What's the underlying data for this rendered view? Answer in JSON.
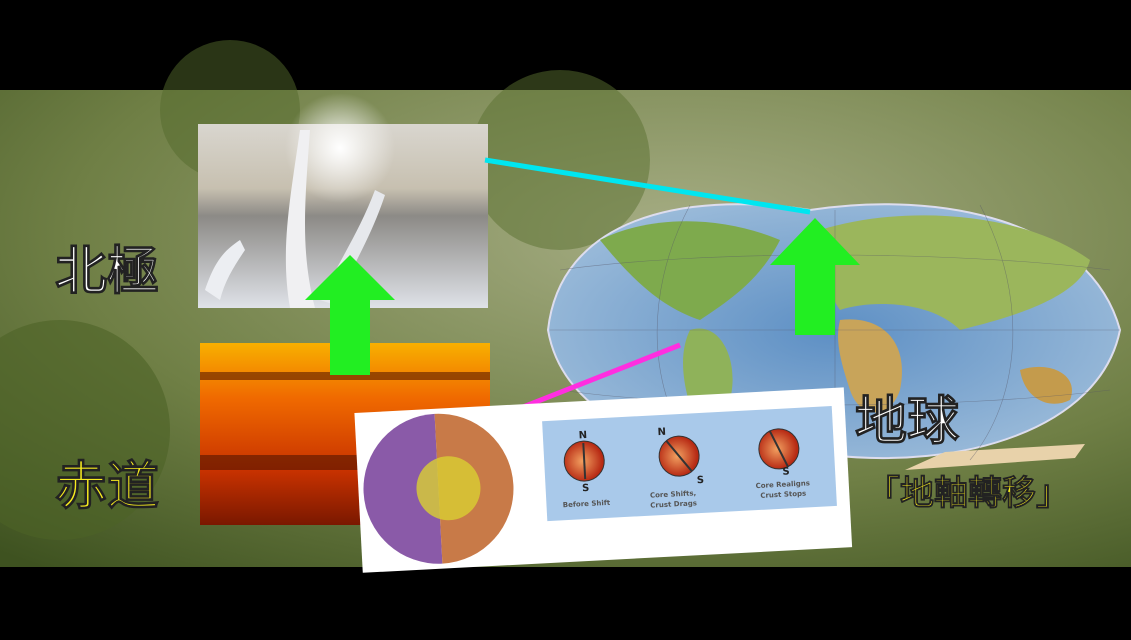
{
  "labels": {
    "north_pole": "北極",
    "equator": "赤道",
    "earth": "地球",
    "caption": "「地軸轉移」"
  },
  "diagram": {
    "pole_n": "N",
    "pole_s": "S",
    "steps": [
      {
        "title": "Before Shift"
      },
      {
        "title": "Core Shifts,",
        "subtitle": "Crust Drags"
      },
      {
        "title": "Core Realigns",
        "subtitle": "Crust Stops"
      }
    ]
  }
}
